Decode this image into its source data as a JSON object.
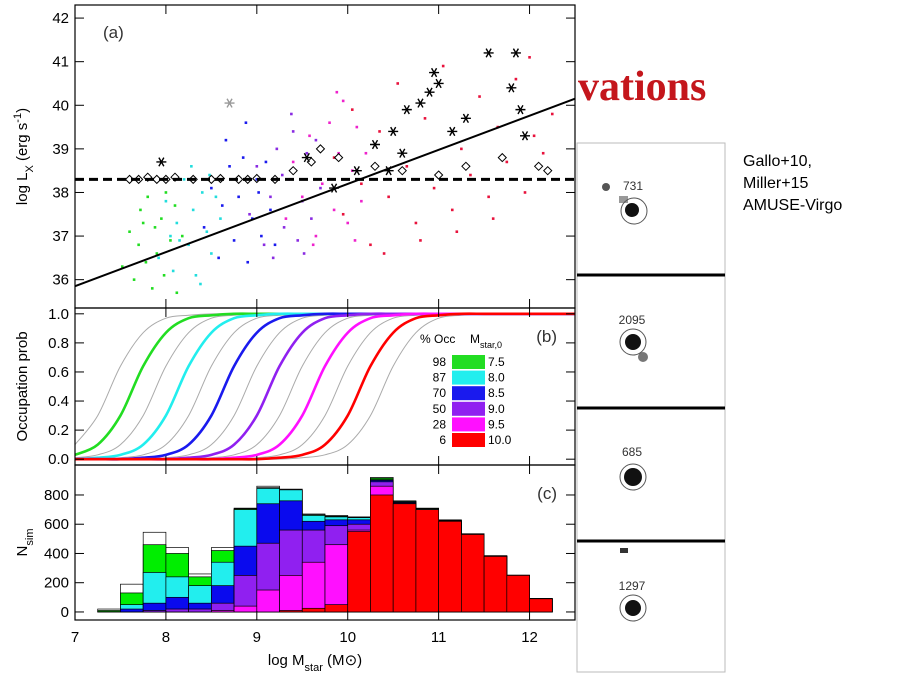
{
  "slide": {
    "title_fragment": "vations",
    "notes": [
      "Gallo+10,",
      "Miller+15",
      "AMUSE-Virgo"
    ],
    "thumbnails": [
      "731",
      "2095",
      "685",
      "1297"
    ]
  },
  "chart_data": [
    {
      "type": "scatter",
      "panel_label": "(a)",
      "ylabel": [
        "log L",
        "X",
        " (erg s",
        "-1",
        ")"
      ],
      "xlim": [
        7,
        12.5
      ],
      "ylim": [
        35.35,
        42.3
      ],
      "yticks": [
        36,
        37,
        38,
        39,
        40,
        41,
        42
      ],
      "series": [
        {
          "color": "#22dd22",
          "marker": "dot",
          "x": [
            7.52,
            7.6,
            7.65,
            7.7,
            7.72,
            7.78,
            7.8,
            7.85,
            7.88,
            7.9,
            7.95,
            7.98,
            8.0,
            8.05,
            8.1,
            8.12,
            8.18,
            7.75
          ],
          "values": [
            36.3,
            37.1,
            36.0,
            36.8,
            37.6,
            36.4,
            37.9,
            35.8,
            37.2,
            36.6,
            37.4,
            36.1,
            38.0,
            36.9,
            37.7,
            35.7,
            37.0,
            37.3
          ]
        },
        {
          "color": "#22dddd",
          "marker": "dot",
          "x": [
            7.92,
            8.0,
            8.08,
            8.12,
            8.2,
            8.25,
            8.3,
            8.33,
            8.4,
            8.45,
            8.5,
            8.55,
            8.6,
            8.28,
            8.15,
            8.38,
            8.48,
            8.05
          ],
          "values": [
            36.5,
            37.8,
            36.2,
            37.3,
            38.3,
            36.8,
            37.6,
            36.1,
            38.0,
            37.1,
            36.6,
            37.9,
            37.4,
            38.6,
            36.9,
            35.9,
            38.4,
            37.0
          ]
        },
        {
          "color": "#1a1aee",
          "marker": "dot",
          "x": [
            8.42,
            8.5,
            8.58,
            8.62,
            8.7,
            8.75,
            8.8,
            8.85,
            8.9,
            8.95,
            9.0,
            9.05,
            9.1,
            9.15,
            9.2,
            8.66,
            8.88,
            9.02
          ],
          "values": [
            37.2,
            38.1,
            36.5,
            37.7,
            38.6,
            36.9,
            37.9,
            38.8,
            36.4,
            37.4,
            38.3,
            37.0,
            38.7,
            37.6,
            36.8,
            39.2,
            39.6,
            38.0
          ]
        },
        {
          "color": "#8a2be2",
          "marker": "dot",
          "x": [
            8.92,
            9.0,
            9.08,
            9.15,
            9.22,
            9.3,
            9.35,
            9.4,
            9.45,
            9.5,
            9.55,
            9.6,
            9.65,
            9.7,
            9.18,
            9.38,
            9.52,
            9.28
          ],
          "values": [
            37.5,
            38.6,
            36.8,
            37.9,
            39.0,
            37.2,
            38.3,
            39.4,
            36.9,
            37.8,
            38.9,
            37.4,
            39.2,
            38.1,
            36.5,
            39.8,
            36.6,
            38.4
          ]
        },
        {
          "color": "#ee22cc",
          "marker": "dot",
          "x": [
            9.32,
            9.4,
            9.5,
            9.58,
            9.65,
            9.72,
            9.8,
            9.85,
            9.9,
            9.95,
            10.0,
            10.05,
            10.1,
            10.15,
            10.2,
            9.62,
            9.88,
            10.08
          ],
          "values": [
            37.4,
            38.7,
            37.9,
            39.3,
            37.0,
            38.2,
            39.6,
            37.6,
            38.9,
            40.1,
            37.3,
            38.5,
            39.5,
            37.8,
            38.9,
            36.8,
            40.3,
            36.9
          ]
        },
        {
          "color": "#e8123c",
          "marker": "dot",
          "x": [
            9.85,
            9.95,
            10.05,
            10.15,
            10.25,
            10.35,
            10.45,
            10.55,
            10.65,
            10.75,
            10.85,
            10.95,
            11.05,
            11.15,
            11.25,
            11.35,
            11.45,
            11.55,
            11.65,
            11.75,
            11.85,
            11.95,
            12.05,
            12.15,
            12.25,
            10.4,
            10.8,
            11.2,
            11.6,
            12.0
          ],
          "values": [
            38.8,
            37.5,
            39.9,
            38.2,
            36.8,
            39.4,
            37.9,
            40.5,
            38.6,
            37.3,
            39.7,
            38.1,
            40.9,
            37.6,
            39.0,
            38.4,
            40.2,
            37.9,
            39.5,
            38.7,
            40.6,
            38.0,
            39.3,
            38.9,
            39.8,
            36.6,
            36.9,
            37.1,
            37.4,
            41.1
          ]
        },
        {
          "color": "#000000",
          "marker": "diamond",
          "x": [
            7.6,
            7.7,
            7.8,
            7.9,
            8.0,
            8.1,
            8.3,
            8.5,
            8.6,
            8.8,
            8.9,
            9.0,
            9.2,
            9.4,
            9.6,
            9.7,
            9.9,
            10.3,
            10.6,
            11.0,
            11.3,
            11.7,
            12.1,
            12.2
          ],
          "values": [
            38.3,
            38.3,
            38.35,
            38.3,
            38.3,
            38.35,
            38.3,
            38.3,
            38.32,
            38.3,
            38.3,
            38.32,
            38.3,
            38.5,
            38.7,
            39.0,
            38.8,
            38.6,
            38.5,
            38.4,
            38.6,
            38.8,
            38.6,
            38.5
          ]
        },
        {
          "color": "#000000",
          "marker": "star",
          "x": [
            7.95,
            9.55,
            9.85,
            10.1,
            10.3,
            10.5,
            10.6,
            10.65,
            10.8,
            10.9,
            10.95,
            11.0,
            11.15,
            11.3,
            11.55,
            11.85,
            11.8,
            11.9,
            11.95,
            10.45
          ],
          "values": [
            38.7,
            38.8,
            38.1,
            38.5,
            39.1,
            39.4,
            38.9,
            39.9,
            40.05,
            40.3,
            40.75,
            40.5,
            39.4,
            39.7,
            41.2,
            41.2,
            40.4,
            39.9,
            39.3,
            38.5
          ]
        },
        {
          "color": "#999999",
          "marker": "star",
          "x": [
            8.7
          ],
          "values": [
            40.05
          ]
        },
        {
          "color": "#000000",
          "marker": "dashed",
          "x": [
            7,
            12.5
          ],
          "values": [
            38.3,
            38.3
          ]
        },
        {
          "color": "#000000",
          "marker": "line",
          "x": [
            7,
            12.5
          ],
          "values": [
            35.85,
            40.15
          ]
        }
      ]
    },
    {
      "type": "line",
      "panel_label": "(b)",
      "ylabel": "Occupation prob",
      "xlim": [
        7,
        12.5
      ],
      "ylim": [
        -0.04,
        1.04
      ],
      "yticks": [
        {
          "value": 0,
          "label": "0.0"
        },
        {
          "value": 0.2,
          "label": "0.2"
        },
        {
          "value": 0.4,
          "label": "0.4"
        },
        {
          "value": 0.6,
          "label": "0.6"
        },
        {
          "value": 0.8,
          "label": "0.8"
        },
        {
          "value": 1,
          "label": "1.0"
        }
      ],
      "legend_header": [
        "% Occ",
        "M",
        "star,0"
      ],
      "x": [
        7,
        7.25,
        7.5,
        7.75,
        8,
        8.25,
        8.5,
        8.75,
        9,
        9.25,
        9.5,
        9.75,
        10,
        10.25,
        10.5,
        10.75,
        11,
        11.25,
        11.5,
        11.75,
        12,
        12.25,
        12.5
      ],
      "series": [
        {
          "color": "#aaaaaa",
          "values": [
            0.1,
            0.3,
            0.64,
            0.87,
            0.97,
            0.99,
            1,
            1,
            1,
            1,
            1,
            1,
            1,
            1,
            1,
            1,
            1,
            1,
            1,
            1,
            1,
            1,
            1
          ]
        },
        {
          "color": "#aaaaaa",
          "values": [
            0.01,
            0.03,
            0.1,
            0.3,
            0.64,
            0.87,
            0.97,
            0.99,
            1,
            1,
            1,
            1,
            1,
            1,
            1,
            1,
            1,
            1,
            1,
            1,
            1,
            1,
            1
          ]
        },
        {
          "color": "#aaaaaa",
          "values": [
            0,
            0,
            0.01,
            0.03,
            0.1,
            0.3,
            0.64,
            0.87,
            0.97,
            0.99,
            1,
            1,
            1,
            1,
            1,
            1,
            1,
            1,
            1,
            1,
            1,
            1,
            1
          ]
        },
        {
          "color": "#aaaaaa",
          "values": [
            0,
            0,
            0,
            0,
            0.01,
            0.03,
            0.1,
            0.3,
            0.64,
            0.87,
            0.97,
            0.99,
            1,
            1,
            1,
            1,
            1,
            1,
            1,
            1,
            1,
            1,
            1
          ]
        },
        {
          "color": "#aaaaaa",
          "values": [
            0,
            0,
            0,
            0,
            0,
            0,
            0.01,
            0.03,
            0.1,
            0.3,
            0.64,
            0.87,
            0.97,
            0.99,
            1,
            1,
            1,
            1,
            1,
            1,
            1,
            1,
            1
          ]
        },
        {
          "color": "#aaaaaa",
          "values": [
            0,
            0,
            0,
            0,
            0,
            0,
            0,
            0,
            0.01,
            0.03,
            0.1,
            0.3,
            0.64,
            0.87,
            0.97,
            0.99,
            1,
            1,
            1,
            1,
            1,
            1,
            1
          ]
        },
        {
          "color": "#aaaaaa",
          "values": [
            0,
            0,
            0,
            0,
            0,
            0,
            0,
            0,
            0,
            0,
            0.01,
            0.03,
            0.1,
            0.3,
            0.64,
            0.87,
            0.97,
            0.99,
            1,
            1,
            1,
            1,
            1
          ]
        },
        {
          "name": "7.5",
          "occupation": 98,
          "color": "#22dd22",
          "values": [
            0.03,
            0.1,
            0.3,
            0.64,
            0.87,
            0.97,
            0.99,
            1,
            1,
            1,
            1,
            1,
            1,
            1,
            1,
            1,
            1,
            1,
            1,
            1,
            1,
            1,
            1
          ]
        },
        {
          "name": "8.0",
          "occupation": 87,
          "color": "#22eeee",
          "values": [
            0,
            0.01,
            0.03,
            0.1,
            0.3,
            0.64,
            0.87,
            0.97,
            0.99,
            1,
            1,
            1,
            1,
            1,
            1,
            1,
            1,
            1,
            1,
            1,
            1,
            1,
            1
          ]
        },
        {
          "name": "8.5",
          "occupation": 70,
          "color": "#1a1aee",
          "values": [
            0,
            0,
            0,
            0.01,
            0.03,
            0.1,
            0.3,
            0.64,
            0.87,
            0.97,
            0.99,
            1,
            1,
            1,
            1,
            1,
            1,
            1,
            1,
            1,
            1,
            1,
            1
          ]
        },
        {
          "name": "9.0",
          "occupation": 50,
          "color": "#9020f0",
          "values": [
            0,
            0,
            0,
            0,
            0,
            0.01,
            0.03,
            0.1,
            0.3,
            0.64,
            0.87,
            0.97,
            0.99,
            1,
            1,
            1,
            1,
            1,
            1,
            1,
            1,
            1,
            1
          ]
        },
        {
          "name": "9.5",
          "occupation": 28,
          "color": "#ff10ff",
          "values": [
            0,
            0,
            0,
            0,
            0,
            0,
            0,
            0.01,
            0.03,
            0.1,
            0.3,
            0.64,
            0.87,
            0.97,
            0.99,
            1,
            1,
            1,
            1,
            1,
            1,
            1,
            1
          ]
        },
        {
          "name": "10.0",
          "occupation": 6,
          "color": "#ff0000",
          "values": [
            0,
            0,
            0,
            0,
            0,
            0,
            0,
            0,
            0,
            0.01,
            0.03,
            0.1,
            0.3,
            0.64,
            0.87,
            0.97,
            0.99,
            1,
            1,
            1,
            1,
            1,
            1
          ]
        }
      ]
    },
    {
      "type": "histogram",
      "panel_label": "(c)",
      "ylabel": [
        "N",
        "sim"
      ],
      "xlabel": [
        "log M",
        "star",
        " (M",
        "⊙",
        ")"
      ],
      "xlim": [
        7,
        12.5
      ],
      "ylim": [
        -55,
        1005
      ],
      "yticks": [
        0,
        200,
        400,
        600,
        800
      ],
      "xticks": [
        7,
        8,
        9,
        10,
        11,
        12
      ],
      "bins": [
        7,
        7.25,
        7.5,
        7.75,
        8,
        8.25,
        8.5,
        8.75,
        9,
        9.25,
        9.5,
        9.75,
        10,
        10.25,
        10.5,
        10.75,
        11,
        11.25,
        11.5,
        11.75,
        12,
        12.25,
        12.5
      ],
      "series": [
        {
          "color": "#ffffff",
          "values": [
            0,
            20,
            190,
            545,
            440,
            260,
            440,
            710,
            860,
            840,
            670,
            660,
            650,
            920,
            760,
            710,
            630,
            535,
            385,
            252,
            92,
            0
          ]
        },
        {
          "color": "#00ee00",
          "values": [
            0,
            10,
            130,
            460,
            400,
            240,
            420,
            705,
            850,
            830,
            665,
            655,
            648,
            915,
            758,
            708,
            628,
            533,
            384,
            251,
            91,
            0
          ]
        },
        {
          "color": "#22eeee",
          "values": [
            0,
            2,
            50,
            270,
            240,
            180,
            340,
            700,
            845,
            835,
            660,
            650,
            645,
            905,
            755,
            705,
            626,
            532,
            383,
            250,
            91,
            0
          ]
        },
        {
          "color": "#0a0aee",
          "values": [
            0,
            0,
            20,
            60,
            100,
            60,
            180,
            450,
            740,
            760,
            620,
            630,
            630,
            900,
            750,
            700,
            624,
            531,
            382,
            250,
            91,
            0
          ]
        },
        {
          "color": "#9020f0",
          "values": [
            0,
            0,
            0,
            10,
            20,
            20,
            60,
            250,
            470,
            560,
            560,
            590,
            600,
            890,
            745,
            698,
            622,
            530,
            381,
            250,
            91,
            0
          ]
        },
        {
          "color": "#ff10ff",
          "values": [
            0,
            0,
            0,
            0,
            0,
            0,
            10,
            40,
            150,
            250,
            340,
            460,
            560,
            860,
            740,
            695,
            620,
            530,
            380,
            250,
            91,
            0
          ]
        },
        {
          "color": "#ff0000",
          "values": [
            0,
            0,
            0,
            0,
            0,
            0,
            0,
            0,
            0,
            10,
            25,
            50,
            550,
            800,
            740,
            700,
            620,
            530,
            380,
            250,
            90,
            0
          ]
        }
      ]
    }
  ]
}
